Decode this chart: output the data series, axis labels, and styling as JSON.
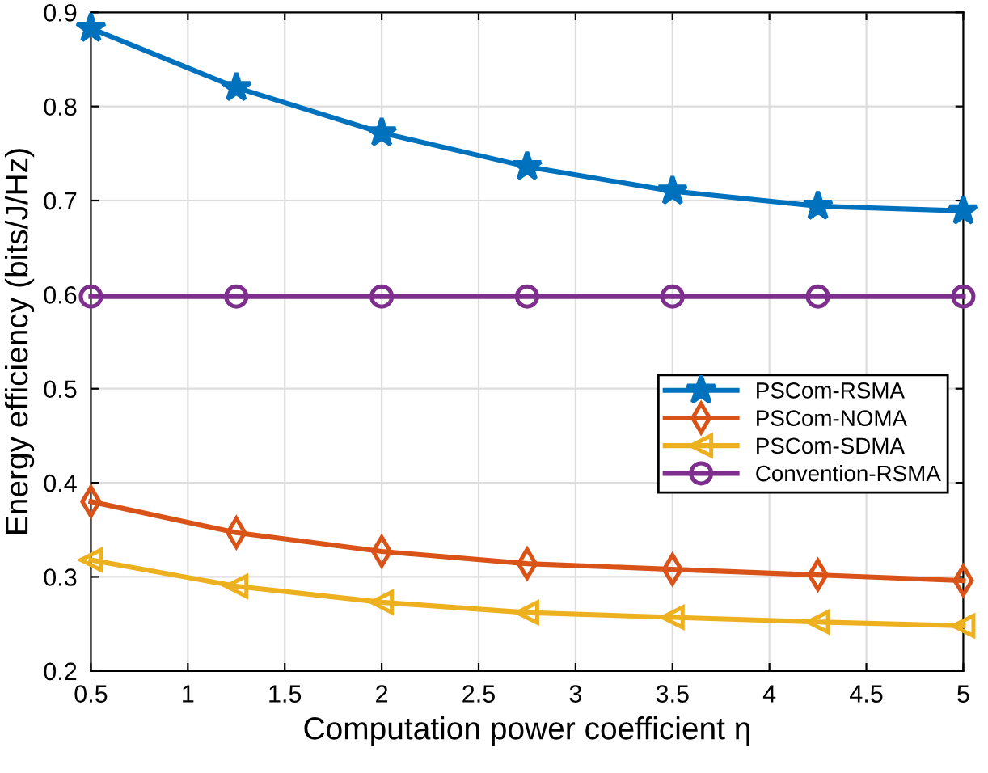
{
  "chart_data": {
    "type": "line",
    "xlabel": "Computation power coefficient η",
    "ylabel": "Energy efficiency (bits/J/Hz)",
    "x": [
      0.5,
      1.25,
      2,
      2.75,
      3.5,
      4.25,
      5
    ],
    "series": [
      {
        "name": "PSCom-RSMA",
        "color": "#0072bd",
        "marker": "star",
        "values": [
          0.883,
          0.82,
          0.772,
          0.736,
          0.71,
          0.694,
          0.689
        ]
      },
      {
        "name": "PSCom-NOMA",
        "color": "#d95319",
        "marker": "diamond",
        "values": [
          0.38,
          0.347,
          0.327,
          0.314,
          0.308,
          0.302,
          0.296
        ]
      },
      {
        "name": "PSCom-SDMA",
        "color": "#edb120",
        "marker": "triangle",
        "values": [
          0.318,
          0.29,
          0.273,
          0.262,
          0.257,
          0.252,
          0.248
        ]
      },
      {
        "name": "Convention-RSMA",
        "color": "#7e2f8e",
        "marker": "circle",
        "values": [
          0.598,
          0.598,
          0.598,
          0.598,
          0.598,
          0.598,
          0.598
        ]
      }
    ],
    "xlim": [
      0.5,
      5
    ],
    "xticks": [
      0.5,
      1,
      1.5,
      2,
      2.5,
      3,
      3.5,
      4,
      4.5,
      5
    ],
    "ylim": [
      0.2,
      0.9
    ],
    "yticks": [
      0.2,
      0.3,
      0.4,
      0.5,
      0.6,
      0.7,
      0.8,
      0.9
    ],
    "grid": true,
    "legend": "right",
    "line_style": "solid"
  }
}
